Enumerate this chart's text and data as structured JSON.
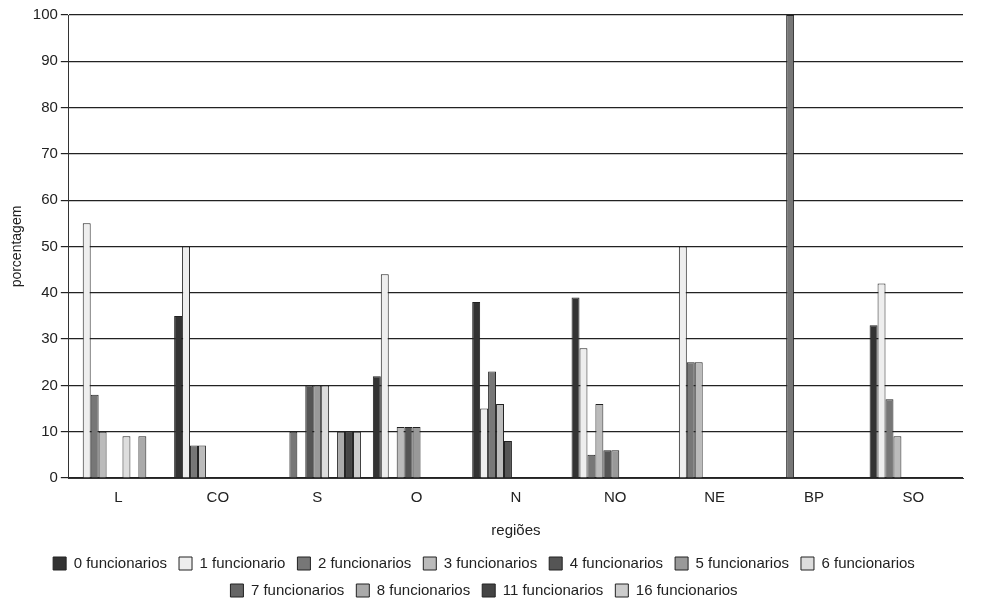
{
  "chart_data": {
    "type": "bar",
    "xlabel": "regiões",
    "ylabel": "porcentagem",
    "categories": [
      "L",
      "CO",
      "S",
      "O",
      "N",
      "NO",
      "NE",
      "BP",
      "SO"
    ],
    "ylim": [
      0,
      100
    ],
    "yticks": [
      0,
      10,
      20,
      30,
      40,
      50,
      60,
      70,
      80,
      90,
      100
    ],
    "grid": "y",
    "legend": "bottom",
    "series": [
      {
        "name": "0 funcionarios",
        "color": "#333333",
        "values": [
          0,
          35,
          0,
          22,
          38,
          39,
          0,
          0,
          33
        ]
      },
      {
        "name": "1 funcionario",
        "color": "#eeeeee",
        "values": [
          55,
          50,
          0,
          44,
          15,
          28,
          50,
          0,
          42
        ]
      },
      {
        "name": "2 funcionarios",
        "color": "#777777",
        "values": [
          18,
          7,
          10,
          0,
          23,
          5,
          25,
          100,
          17
        ]
      },
      {
        "name": "3 funcionarios",
        "color": "#bbbbbb",
        "values": [
          10,
          7,
          0,
          11,
          16,
          16,
          25,
          0,
          9
        ]
      },
      {
        "name": "4 funcionarios",
        "color": "#555555",
        "values": [
          0,
          0,
          20,
          11,
          8,
          6,
          0,
          0,
          0
        ]
      },
      {
        "name": "5 funcionarios",
        "color": "#999999",
        "values": [
          0,
          0,
          20,
          11,
          0,
          6,
          0,
          0,
          0
        ]
      },
      {
        "name": "6 funcionarios",
        "color": "#dddddd",
        "values": [
          9,
          0,
          20,
          0,
          0,
          0,
          0,
          0,
          0
        ]
      },
      {
        "name": "7 funcionarios",
        "color": "#666666",
        "values": [
          0,
          0,
          0,
          0,
          0,
          0,
          0,
          0,
          0
        ]
      },
      {
        "name": "8 funcionarios",
        "color": "#aaaaaa",
        "values": [
          9,
          0,
          10,
          0,
          0,
          0,
          0,
          0,
          0
        ]
      },
      {
        "name": "11 funcionarios",
        "color": "#444444",
        "values": [
          0,
          0,
          10,
          0,
          0,
          0,
          0,
          0,
          0
        ]
      },
      {
        "name": "16 funcionarios",
        "color": "#cccccc",
        "values": [
          0,
          0,
          10,
          0,
          0,
          0,
          0,
          0,
          0
        ]
      }
    ]
  }
}
